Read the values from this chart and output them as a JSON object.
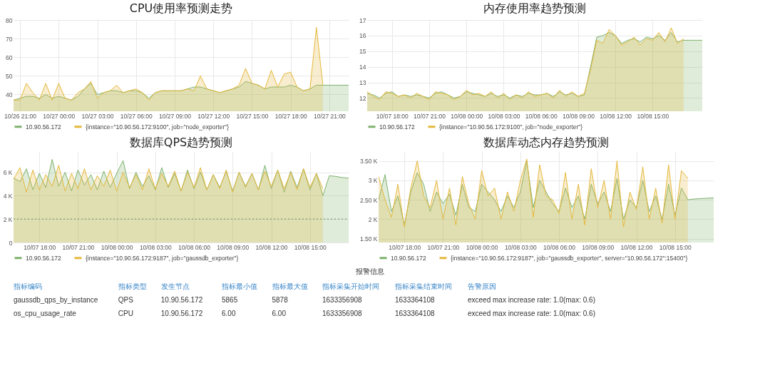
{
  "chart_data": [
    {
      "type": "area",
      "title": "CPU使用率预测走势",
      "legend": "bottom",
      "grid": true,
      "ylim": [
        31,
        80
      ],
      "categories": [
        null,
        "10/26 21:00",
        null,
        null,
        null,
        null,
        null,
        "10/27 00:00",
        null,
        null,
        null,
        null,
        null,
        "10/27 03:00",
        null,
        null,
        null,
        null,
        null,
        "10/27 06:00",
        null,
        null,
        null,
        null,
        null,
        "10/27 09:00",
        null,
        null,
        null,
        null,
        null,
        "10/27 12:00",
        null,
        null,
        null,
        null,
        null,
        "10/27 15:00",
        null,
        null,
        null,
        null,
        null,
        "10/27 18:00",
        null,
        null,
        null,
        null,
        null,
        "10/27 21:00",
        null,
        null,
        null
      ],
      "yticks": [
        40,
        50,
        60,
        70,
        80
      ],
      "series": [
        {
          "name": "10.90.56.172",
          "color": "#7eb26d",
          "values": [
            37,
            38,
            39,
            39,
            38,
            40,
            38,
            39,
            38,
            37,
            39,
            43,
            46,
            40,
            41,
            42,
            42,
            41,
            42,
            42,
            41,
            38,
            41,
            42,
            42,
            42,
            42,
            43,
            44,
            44,
            43,
            42,
            41,
            42,
            43,
            44,
            47,
            46,
            45,
            43,
            44,
            44,
            44,
            45,
            44,
            42,
            43,
            45,
            45,
            45,
            45,
            45,
            45
          ]
        },
        {
          "name": "{instance=\"10.90.56.172:9100\", job=\"node_exporter\"}",
          "color": "#e5b83c",
          "values": [
            37,
            37,
            46,
            41,
            37,
            46,
            37,
            46,
            38,
            37,
            41,
            43,
            47,
            38,
            41,
            42,
            45,
            41,
            42,
            43,
            41,
            37,
            41,
            42,
            42,
            42,
            42,
            43,
            42,
            50,
            43,
            42,
            41,
            42,
            43,
            45,
            54,
            46,
            45,
            43,
            53,
            44,
            51,
            52,
            44,
            42,
            43,
            76,
            45,
            null,
            null,
            null,
            null
          ]
        }
      ]
    },
    {
      "type": "area",
      "title": "内存使用率趋势预测",
      "legend": "bottom",
      "grid": true,
      "ylim": [
        11.15,
        17
      ],
      "categories": [
        null,
        null,
        null,
        null,
        "10/07 18:00",
        null,
        null,
        null,
        null,
        null,
        "10/07 21:00",
        null,
        null,
        null,
        null,
        null,
        "10/08 00:00",
        null,
        null,
        null,
        null,
        null,
        "10/08 03:00",
        null,
        null,
        null,
        null,
        null,
        "10/08 06:00",
        null,
        null,
        null,
        null,
        null,
        "10/08 09:00",
        null,
        null,
        null,
        null,
        null,
        "10/08 12:00",
        null,
        null,
        null,
        null,
        null,
        "10/08 15:00",
        null,
        null,
        null,
        null,
        null,
        null,
        null,
        null
      ],
      "yticks": [
        12,
        13,
        14,
        15,
        16,
        17
      ],
      "series": [
        {
          "name": "10.90.56.172",
          "color": "#7eb26d",
          "values": [
            12.3,
            12.2,
            12.0,
            12.3,
            12.4,
            12.1,
            12.2,
            12.1,
            12.2,
            12.1,
            12.0,
            12.3,
            12.4,
            12.2,
            12.0,
            12.1,
            12.4,
            12.3,
            12.2,
            12.1,
            12.3,
            12.1,
            12.2,
            12.0,
            12.2,
            12.1,
            12.3,
            12.2,
            12.2,
            12.3,
            12.1,
            12.4,
            12.2,
            12.3,
            12.1,
            12.2,
            14.0,
            15.9,
            16.0,
            16.2,
            16.0,
            15.5,
            15.7,
            15.8,
            15.6,
            15.9,
            15.8,
            16.0,
            15.7,
            16.2,
            15.6,
            15.7,
            15.7,
            15.7,
            15.7
          ]
        },
        {
          "name": "{instance=\"10.90.56.172:9100\", job=\"node_exporter\"}",
          "color": "#e5b83c",
          "values": [
            12.4,
            12.1,
            11.9,
            12.4,
            12.3,
            12.1,
            12.2,
            12.0,
            12.3,
            12.1,
            11.9,
            12.4,
            12.3,
            12.2,
            11.9,
            12.1,
            12.5,
            12.2,
            12.3,
            12.1,
            12.4,
            12.0,
            12.3,
            11.9,
            12.2,
            12.0,
            12.4,
            12.1,
            12.2,
            12.3,
            12.0,
            12.5,
            12.1,
            12.4,
            12.1,
            12.3,
            13.8,
            15.7,
            15.5,
            16.4,
            16.0,
            15.4,
            15.6,
            15.9,
            15.4,
            15.8,
            15.7,
            16.2,
            15.6,
            16.5,
            15.5,
            15.8,
            null,
            null,
            null
          ]
        }
      ]
    },
    {
      "type": "area",
      "title": "数据库QPS趋势预测",
      "legend": "bottom",
      "grid": true,
      "ylim": [
        0,
        7800
      ],
      "categories": [
        null,
        null,
        null,
        null,
        "10/07 18:00",
        null,
        null,
        null,
        null,
        null,
        "10/07 21:00",
        null,
        null,
        null,
        null,
        null,
        "10/08 00:00",
        null,
        null,
        null,
        null,
        null,
        "10/08 03:00",
        null,
        null,
        null,
        null,
        null,
        "10/08 06:00",
        null,
        null,
        null,
        null,
        null,
        "10/08 09:00",
        null,
        null,
        null,
        null,
        null,
        "10/08 12:00",
        null,
        null,
        null,
        null,
        null,
        "10/08 15:00",
        null,
        null,
        null,
        null,
        null,
        null
      ],
      "yticks": [
        0,
        {
          "value": 2000,
          "label": "2 K"
        },
        {
          "value": 4000,
          "label": "4 K"
        },
        {
          "value": 6000,
          "label": "6 K"
        }
      ],
      "ref_lines": [
        {
          "axis": "y",
          "value": 2000,
          "color": "#7a9c7a",
          "line_style": "dotted"
        }
      ],
      "series": [
        {
          "name": "10.90.56.172",
          "color": "#7eb26d",
          "values": [
            5500,
            5200,
            6300,
            4500,
            5900,
            4700,
            7100,
            4800,
            6000,
            4400,
            6200,
            4900,
            5800,
            4500,
            6100,
            4700,
            5900,
            7000,
            4600,
            6000,
            4800,
            5700,
            4500,
            6400,
            4700,
            5900,
            4400,
            6200,
            4600,
            6000,
            4500,
            5800,
            4700,
            6100,
            4400,
            6000,
            4800,
            5900,
            4500,
            6600,
            4600,
            6200,
            4300,
            6100,
            4700,
            6300,
            4500,
            5900,
            4000,
            5700,
            5650,
            5550,
            5500
          ]
        },
        {
          "name": "{instance=\"10.90.56.172:9187\", job=\"gaussdb_exporter\"}",
          "color": "#e5b83c",
          "values": [
            5400,
            6400,
            4300,
            6200,
            4500,
            5800,
            4800,
            6600,
            4400,
            5900,
            4600,
            6300,
            4500,
            5700,
            4800,
            6200,
            4400,
            6000,
            4700,
            5800,
            4500,
            6300,
            4600,
            5900,
            4800,
            6100,
            4400,
            6000,
            4700,
            6400,
            4500,
            5800,
            4600,
            6200,
            4300,
            6000,
            4700,
            5900,
            4500,
            6100,
            4800,
            6200,
            4600,
            6000,
            4500,
            6300,
            4700,
            5900,
            4600,
            null,
            null,
            null,
            null
          ]
        }
      ]
    },
    {
      "type": "area",
      "title": "数据库动态内存趋势预测",
      "legend": "bottom",
      "grid": true,
      "ylim": [
        1400,
        3750
      ],
      "categories": [
        null,
        null,
        null,
        null,
        "10/07 18:00",
        null,
        null,
        null,
        null,
        null,
        "10/07 21:00",
        null,
        null,
        null,
        null,
        null,
        "10/08 00:00",
        null,
        null,
        null,
        null,
        null,
        "10/08 03:00",
        null,
        null,
        null,
        null,
        null,
        "10/08 06:00",
        null,
        null,
        null,
        null,
        null,
        "10/08 09:00",
        null,
        null,
        null,
        null,
        null,
        "10/08 12:00",
        null,
        null,
        null,
        null,
        null,
        "10/08 15:00",
        null,
        null,
        null,
        null,
        null,
        null
      ],
      "yticks": [
        {
          "value": 1500,
          "label": "1.50 K"
        },
        {
          "value": 2000,
          "label": "2 K"
        },
        {
          "value": 2500,
          "label": "2.50 K"
        },
        {
          "value": 3000,
          "label": "3 K"
        },
        {
          "value": 3500,
          "label": "3.50 K"
        }
      ],
      "series": [
        {
          "name": "10.90.56.172",
          "color": "#7eb26d",
          "values": [
            2500,
            3150,
            2200,
            2600,
            1850,
            2700,
            3200,
            2900,
            2200,
            2700,
            2400,
            2650,
            2100,
            2900,
            2300,
            2200,
            2900,
            2700,
            2500,
            2200,
            2600,
            2300,
            2700,
            3500,
            2300,
            3000,
            2700,
            2400,
            2200,
            2800,
            2300,
            2600,
            2000,
            2900,
            2400,
            2700,
            2200,
            3050,
            2000,
            2500,
            2300,
            3000,
            2200,
            2600,
            2000,
            2900,
            2100,
            2800,
            2500,
            2520,
            2530,
            2540,
            2550
          ]
        },
        {
          "name": "{instance=\"10.90.56.172:9187\", job=\"gaussdb_exporter\", server=\"10.90.56.172\":15400\"}",
          "color": "#e5b83c",
          "values": [
            3100,
            2500,
            2050,
            2900,
            1800,
            2800,
            3500,
            2600,
            2300,
            3000,
            2000,
            2800,
            1850,
            3100,
            2400,
            2000,
            3250,
            2600,
            2800,
            2000,
            2700,
            2200,
            3000,
            3550,
            2050,
            3400,
            2600,
            2500,
            2150,
            3200,
            2000,
            2900,
            1850,
            3300,
            2300,
            3000,
            2000,
            3500,
            1800,
            2700,
            2250,
            3350,
            2000,
            2800,
            1900,
            3400,
            2000,
            3250,
            3050,
            null,
            null,
            null,
            null
          ]
        }
      ]
    },
    {
      "type": "other",
      "title": "报警信息",
      "categories": [
        "指标编码",
        "指标类型",
        "发生节点",
        "指标最小值",
        "指标最大值",
        "指标采集开始时间",
        "指标采集结束时间",
        "告警原因"
      ],
      "annotations": [
        "gaussdb_qps_by_instance",
        "QPS",
        "10.90.56.172",
        "5865",
        "5878",
        "1633356908",
        "1633364108",
        "exceed max increase rate: 1.0(max: 0.6)",
        "os_cpu_usage_rate",
        "CPU",
        "10.90.56.172",
        "6.00",
        "6.00",
        "1633356908",
        "1633364108",
        "exceed max increase rate: 1.0(max: 0.6)"
      ]
    }
  ]
}
